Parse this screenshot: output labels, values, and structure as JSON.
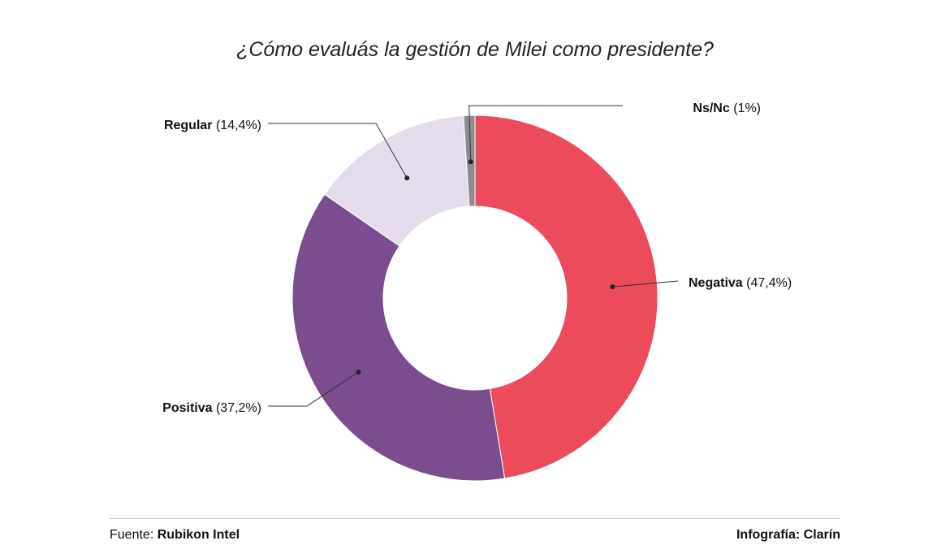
{
  "chart_data": {
    "type": "pie",
    "title": "¿Cómo evaluás la gestión de Milei como presidente?",
    "slices": [
      {
        "name": "Negativa",
        "value": 47.4,
        "label": "(47,4%)",
        "color": "#EB4B5A"
      },
      {
        "name": "Positiva",
        "value": 37.2,
        "label": "(37,2%)",
        "color": "#7A4E8E"
      },
      {
        "name": "Regular",
        "value": 14.4,
        "label": "(14,4%)",
        "color": "#E4DCEB"
      },
      {
        "name": "Ns/Nc",
        "value": 1,
        "label": "(1%)",
        "color": "#8C8C8C"
      }
    ]
  },
  "footer": {
    "source_label": "Fuente:",
    "source_name": "Rubikon Intel",
    "credit_label": "Infografía:",
    "credit_name": "Clarín"
  }
}
